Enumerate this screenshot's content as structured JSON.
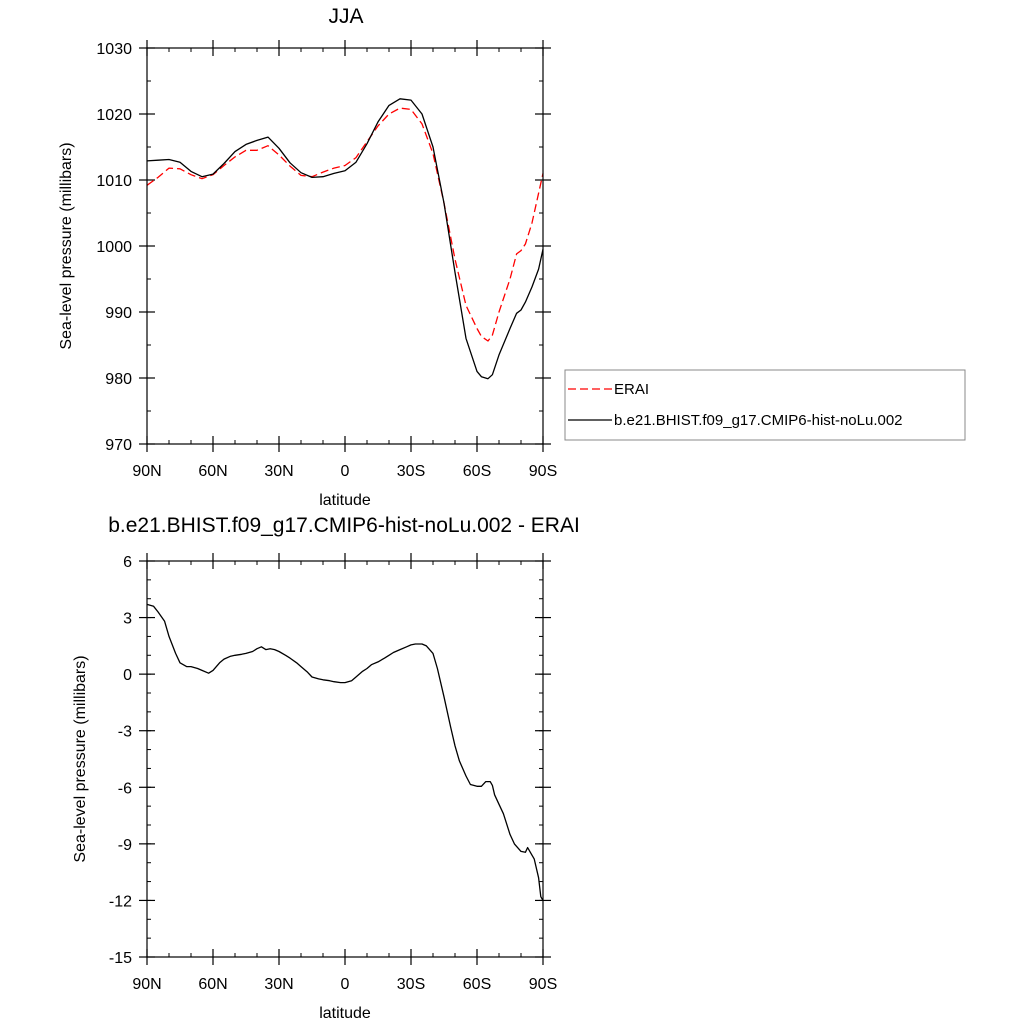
{
  "chart_data": [
    {
      "type": "line",
      "title": "JJA",
      "xlabel": "latitude",
      "ylabel": "Sea-level pressure (millibars)",
      "xlim": [
        -90,
        90
      ],
      "ylim": [
        970,
        1030
      ],
      "xticks": [
        -90,
        -60,
        -30,
        0,
        30,
        60,
        90
      ],
      "xtick_labels": [
        "90N",
        "60N",
        "30N",
        "0",
        "30S",
        "60S",
        "90S"
      ],
      "yticks": [
        970,
        980,
        990,
        1000,
        1010,
        1020,
        1030
      ],
      "ytick_labels": [
        "970",
        "980",
        "990",
        "1000",
        "1010",
        "1020",
        "1030"
      ],
      "legend_position": "right",
      "series": [
        {
          "name": "ERAI",
          "color": "#ff0000",
          "dash": "dashed",
          "x": [
            -90,
            -85,
            -80,
            -75,
            -70,
            -65,
            -60,
            -55,
            -50,
            -45,
            -40,
            -35,
            -30,
            -25,
            -20,
            -15,
            -10,
            -5,
            0,
            5,
            10,
            15,
            20,
            25,
            30,
            35,
            40,
            45,
            50,
            55,
            60,
            62,
            65,
            67,
            70,
            75,
            78,
            80,
            82,
            85,
            88,
            90
          ],
          "y": [
            1009.2,
            1010.4,
            1011.8,
            1011.7,
            1010.8,
            1010.2,
            1010.8,
            1012.2,
            1013.5,
            1014.5,
            1014.5,
            1015.2,
            1013.8,
            1012.1,
            1010.7,
            1010.5,
            1011.2,
            1011.8,
            1012.2,
            1013.4,
            1015.8,
            1018.2,
            1020.0,
            1020.9,
            1020.7,
            1018.5,
            1014.0,
            1006.5,
            998.0,
            991.0,
            987.5,
            986.3,
            985.6,
            986.5,
            990.0,
            995.0,
            998.8,
            999.3,
            1000.3,
            1003.5,
            1008.0,
            1011.0
          ]
        },
        {
          "name": "b.e21.BHIST.f09_g17.CMIP6-hist-noLu.002",
          "color": "#000000",
          "dash": "solid",
          "x": [
            -90,
            -85,
            -80,
            -75,
            -70,
            -65,
            -60,
            -55,
            -50,
            -45,
            -40,
            -35,
            -30,
            -25,
            -20,
            -15,
            -10,
            -5,
            0,
            5,
            10,
            15,
            20,
            25,
            30,
            35,
            40,
            45,
            50,
            55,
            60,
            62,
            65,
            67,
            70,
            75,
            78,
            80,
            82,
            85,
            88,
            90
          ],
          "y": [
            1012.9,
            1013.0,
            1013.1,
            1012.7,
            1011.3,
            1010.5,
            1010.9,
            1012.5,
            1014.3,
            1015.4,
            1016.0,
            1016.5,
            1014.8,
            1012.6,
            1011.1,
            1010.4,
            1010.5,
            1011.0,
            1011.4,
            1012.7,
            1015.5,
            1018.8,
            1021.3,
            1022.3,
            1022.1,
            1020.0,
            1015.0,
            1006.5,
            996.0,
            986.0,
            981.0,
            980.2,
            979.9,
            980.5,
            983.5,
            987.5,
            989.8,
            990.3,
            991.5,
            993.8,
            996.5,
            999.5
          ]
        }
      ]
    },
    {
      "type": "line",
      "title": "b.e21.BHIST.f09_g17.CMIP6-hist-noLu.002 - ERAI",
      "xlabel": "latitude",
      "ylabel": "Sea-level pressure (millibars)",
      "xlim": [
        -90,
        90
      ],
      "ylim": [
        -15,
        6
      ],
      "xticks": [
        -90,
        -60,
        -30,
        0,
        30,
        60,
        90
      ],
      "xtick_labels": [
        "90N",
        "60N",
        "30N",
        "0",
        "30S",
        "60S",
        "90S"
      ],
      "yticks": [
        -15,
        -12,
        -9,
        -6,
        -3,
        0,
        3,
        6
      ],
      "ytick_labels": [
        "-15",
        "-12",
        "-9",
        "-6",
        "-3",
        "0",
        "3",
        "6"
      ],
      "series": [
        {
          "color": "#000000",
          "dash": "solid",
          "x": [
            -90,
            -87,
            -85,
            -82,
            -80,
            -77,
            -75,
            -72,
            -70,
            -67,
            -65,
            -62,
            -60,
            -57,
            -55,
            -52,
            -50,
            -47,
            -45,
            -42,
            -40,
            -38,
            -36,
            -34,
            -32,
            -30,
            -27,
            -25,
            -22,
            -20,
            -17,
            -15,
            -12,
            -10,
            -7,
            -5,
            -2,
            0,
            3,
            5,
            8,
            10,
            12,
            15,
            18,
            20,
            22,
            25,
            28,
            30,
            32,
            35,
            37,
            40,
            42,
            45,
            48,
            50,
            52,
            55,
            57,
            60,
            62,
            64,
            66,
            67,
            68,
            70,
            72,
            75,
            77,
            80,
            82,
            83,
            85,
            86,
            88,
            89,
            90
          ],
          "y": [
            3.7,
            3.6,
            3.3,
            2.8,
            2.0,
            1.1,
            0.6,
            0.4,
            0.4,
            0.3,
            0.2,
            0.05,
            0.2,
            0.6,
            0.8,
            0.95,
            1.0,
            1.05,
            1.1,
            1.2,
            1.35,
            1.45,
            1.3,
            1.35,
            1.3,
            1.2,
            1.0,
            0.85,
            0.6,
            0.4,
            0.1,
            -0.15,
            -0.25,
            -0.3,
            -0.35,
            -0.4,
            -0.45,
            -0.45,
            -0.35,
            -0.15,
            0.15,
            0.3,
            0.5,
            0.65,
            0.85,
            1.0,
            1.15,
            1.3,
            1.45,
            1.55,
            1.6,
            1.6,
            1.5,
            1.1,
            0.3,
            -1.2,
            -2.8,
            -3.8,
            -4.6,
            -5.4,
            -5.85,
            -5.95,
            -5.95,
            -5.7,
            -5.7,
            -5.9,
            -6.4,
            -6.9,
            -7.4,
            -8.5,
            -9.0,
            -9.4,
            -9.45,
            -9.2,
            -9.6,
            -9.8,
            -10.8,
            -11.8,
            -12.0
          ]
        }
      ]
    }
  ]
}
